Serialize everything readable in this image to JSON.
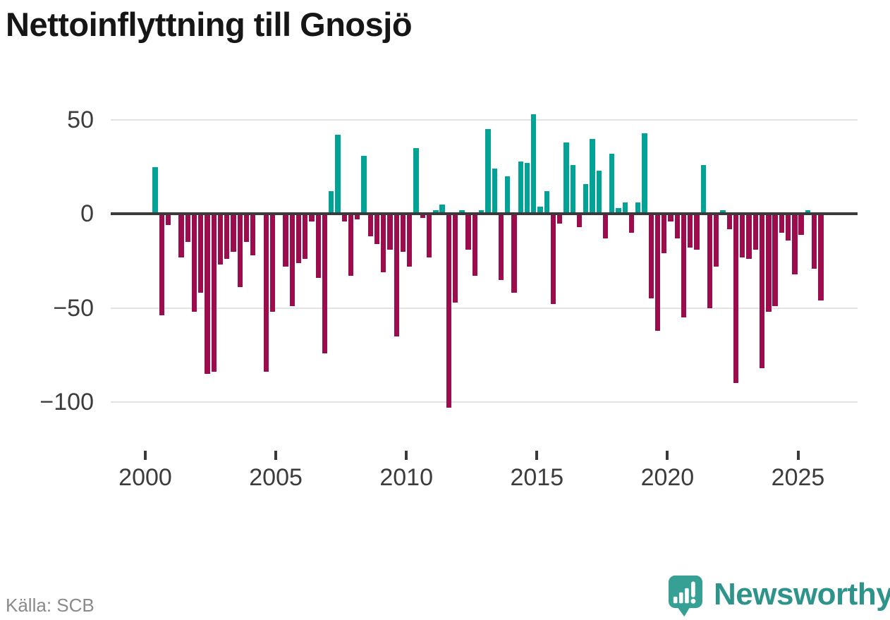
{
  "title": "Nettoinflyttning till Gnosjö",
  "source": "Källa: SCB",
  "branding": {
    "logo_text": "Newsworthy",
    "logo_icon": "speech-bubble-bar-chart-exclamation",
    "brand_color": "#2e948b"
  },
  "chart_data": {
    "type": "bar",
    "title": "Nettoinflyttning till Gnosjö",
    "frequency": "quarterly",
    "start_period": "2000-Q2",
    "end_period": "2025-Q4",
    "values": [
      25,
      -54,
      -6,
      0,
      -23,
      -15,
      -52,
      -42,
      -85,
      -84,
      -27,
      -24,
      -20,
      -39,
      -15,
      -22,
      0,
      -84,
      -52,
      0,
      -28,
      -49,
      -26,
      -24,
      -4,
      -34,
      -74,
      12,
      42,
      -4,
      -33,
      -3,
      31,
      -12,
      -16,
      -31,
      -19,
      -65,
      -20,
      -28,
      35,
      -2,
      -23,
      2,
      5,
      -103,
      -47,
      2,
      -19,
      -33,
      2,
      45,
      24,
      -35,
      20,
      -42,
      28,
      27,
      53,
      4,
      12,
      -48,
      -5,
      38,
      26,
      -7,
      16,
      40,
      23,
      -13,
      32,
      3,
      6,
      -10,
      6,
      43,
      -45,
      -62,
      -21,
      -4,
      -13,
      -55,
      -18,
      -19,
      26,
      -50,
      -28,
      2,
      -8,
      -90,
      -23,
      -24,
      -19,
      -82,
      -52,
      -49,
      -10,
      -14,
      -32,
      -11,
      2,
      -29,
      -46
    ],
    "x_tick_years": [
      2000,
      2005,
      2010,
      2015,
      2020,
      2025
    ],
    "y_ticks": [
      {
        "value": 50,
        "label": "50"
      },
      {
        "value": 0,
        "label": "0"
      },
      {
        "value": -50,
        "label": "−50"
      },
      {
        "value": -100,
        "label": "−100"
      }
    ],
    "ylim": [
      -110,
      60
    ],
    "grid": "horizontal",
    "legend": "none",
    "positive_color": "#00a396",
    "negative_color": "#9d0c4d",
    "axis_color": "#3a3a3a",
    "gridline_color": "#e3e3e3"
  }
}
